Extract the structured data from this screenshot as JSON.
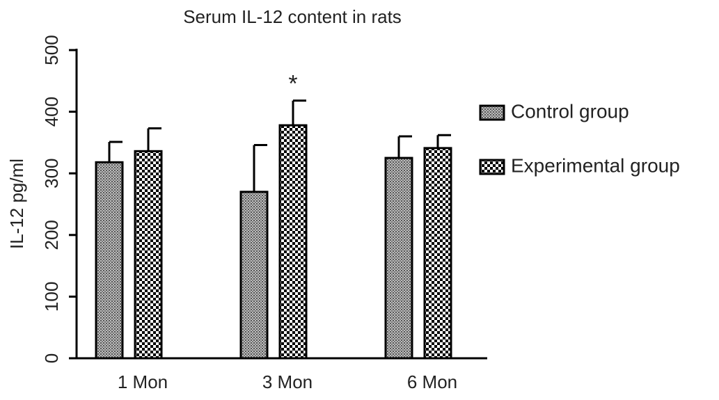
{
  "chart_data": {
    "type": "bar",
    "title": "Serum IL-12 content in rats",
    "y_label": "IL-12 pg/ml",
    "categories": [
      "1 Mon",
      "3 Mon",
      "6 Mon"
    ],
    "series": [
      {
        "name": "Control group",
        "color": "#555555",
        "pattern": "dense",
        "values": [
          318,
          270,
          325
        ],
        "errors": [
          33,
          76,
          35
        ]
      },
      {
        "name": "Experimental group",
        "color": "#000000",
        "pattern": "checker",
        "values": [
          336,
          378,
          341
        ],
        "errors": [
          37,
          40,
          21
        ]
      }
    ],
    "annotations": [
      {
        "text": "*",
        "category": 1,
        "series": 1
      }
    ],
    "ylim": [
      0,
      500
    ],
    "yticks": [
      0,
      100,
      200,
      300,
      400,
      500
    ],
    "legend": "right"
  }
}
